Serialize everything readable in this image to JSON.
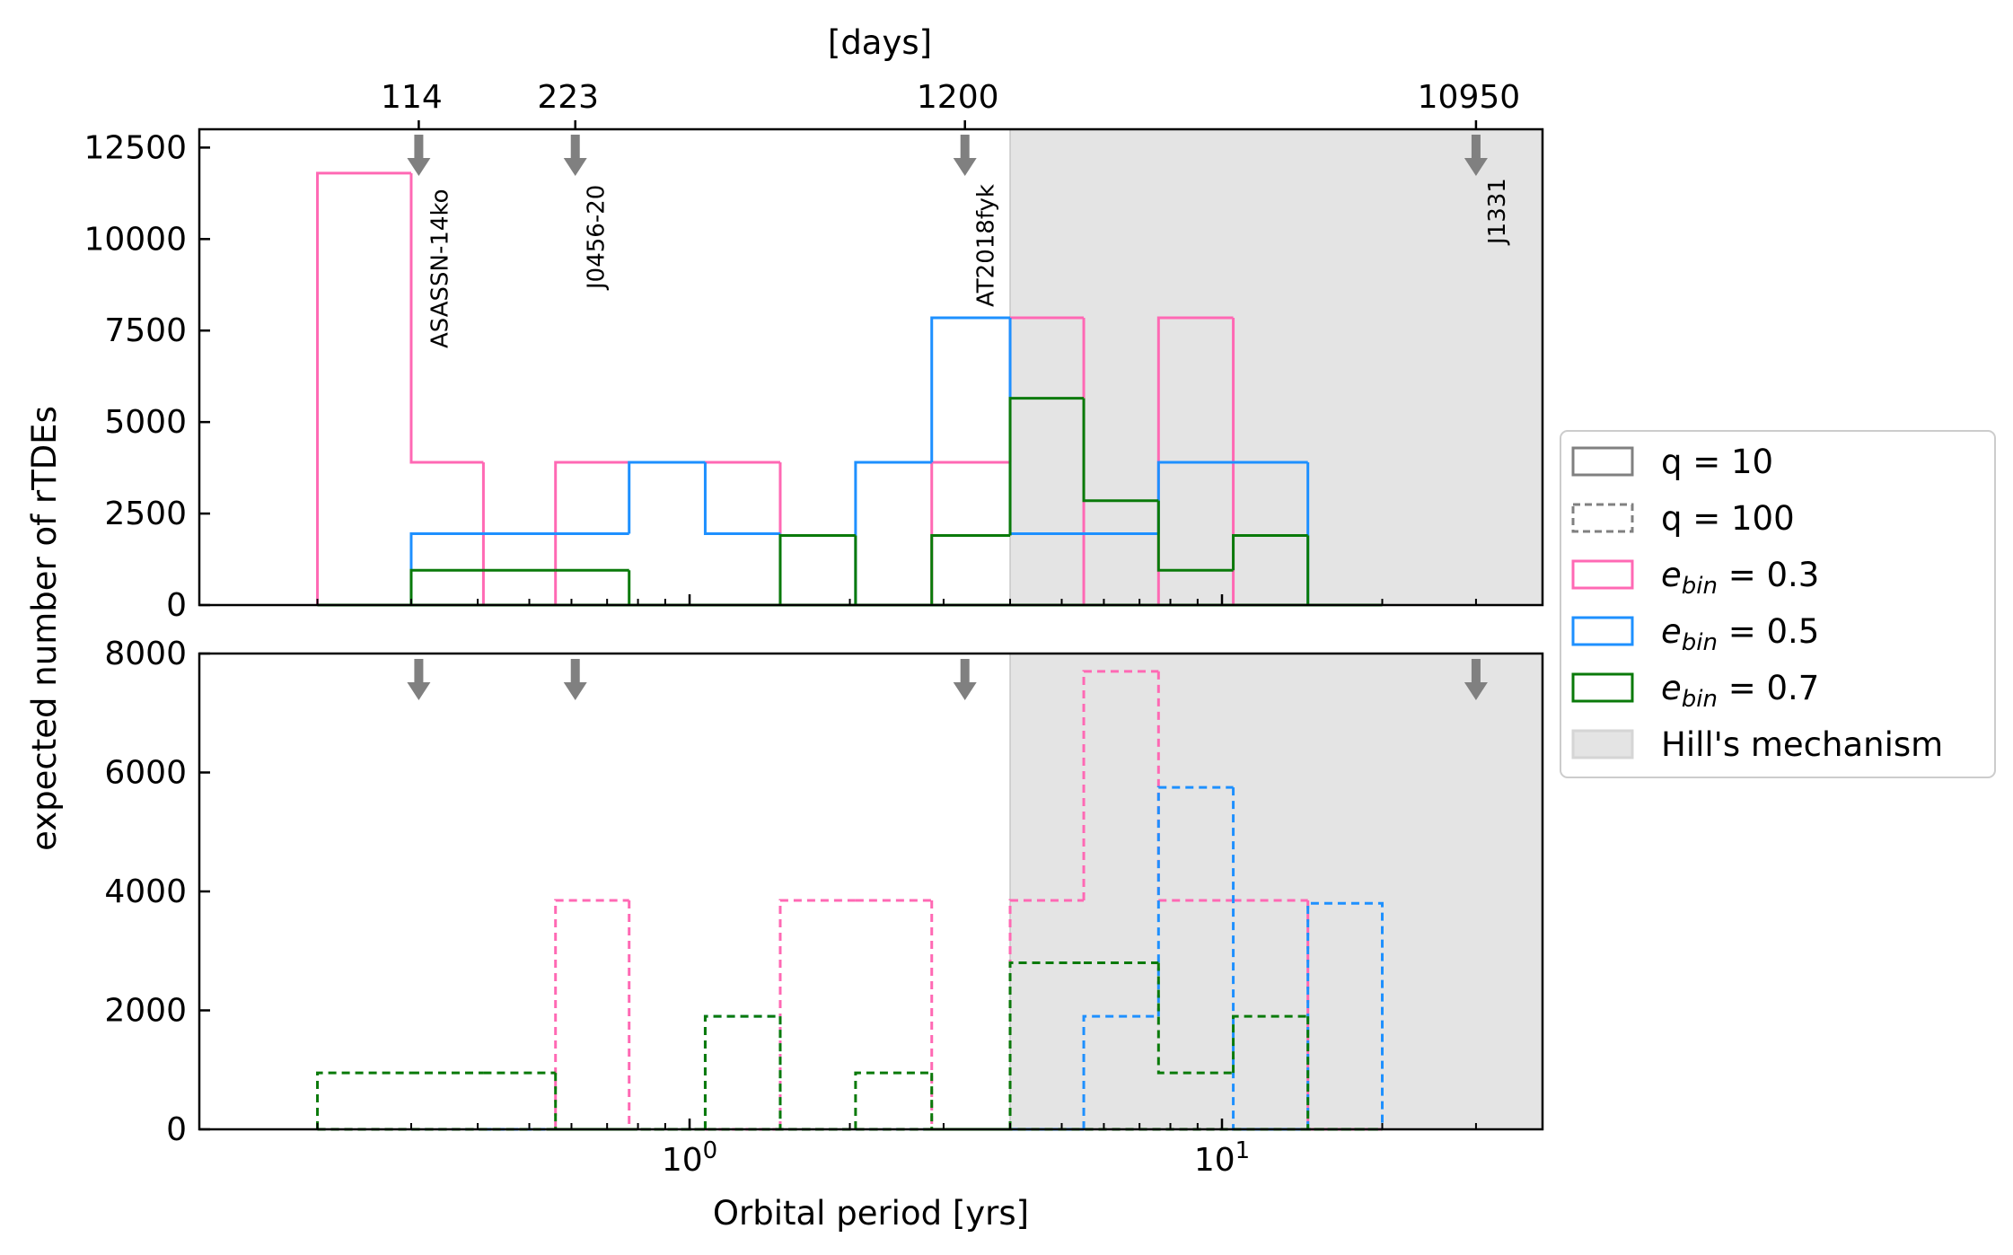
{
  "chart_data": {
    "type": "histogram",
    "xlabel": "Orbital period [yrs]",
    "ylabel": "expected number of rTDEs",
    "xscale": "log",
    "xlim": [
      0.12,
      40
    ],
    "x_tick_labels": [
      {
        "value": 1,
        "label": "10",
        "exp": "0"
      },
      {
        "value": 10,
        "label": "10",
        "exp": "1"
      }
    ],
    "top_axis": {
      "label": "[days]",
      "ticks": [
        {
          "label": "114",
          "years": 0.31
        },
        {
          "label": "223",
          "years": 0.61
        },
        {
          "label": "1200",
          "years": 3.29
        },
        {
          "label": "10950",
          "years": 30.0
        }
      ]
    },
    "annotations": [
      {
        "text": "ASASSN-14ko",
        "years": 0.31
      },
      {
        "text": "J0456-20",
        "years": 0.61
      },
      {
        "text": "AT2018fyk",
        "years": 3.29
      },
      {
        "text": "J1331",
        "years": 30.0
      }
    ],
    "shaded_region": {
      "label": "Hill's mechanism",
      "x_start": 4.0,
      "x_end": 40,
      "color": "#e4e4e4"
    },
    "colors": {
      "e03": "#ff69b4",
      "e05": "#1e90ff",
      "e07": "#0a7a0a",
      "arrow": "#808080"
    },
    "bin_edges": [
      0.2,
      0.3,
      0.41,
      0.56,
      0.77,
      1.07,
      1.48,
      2.05,
      2.85,
      4.0,
      5.5,
      7.6,
      10.5,
      14.5,
      20.0
    ],
    "panels": [
      {
        "name": "top",
        "q": "q = 10",
        "linestyle": "solid",
        "ylim": [
          0,
          13000
        ],
        "yticks": [
          0,
          2500,
          5000,
          7500,
          10000,
          12500
        ],
        "series": [
          {
            "name": "e_bin = 0.3",
            "color_key": "e03",
            "values": [
              11800,
              3900,
              0,
              3900,
              3900,
              3900,
              0,
              0,
              3900,
              7850,
              0,
              7850,
              0,
              0
            ]
          },
          {
            "name": "e_bin = 0.5",
            "color_key": "e05",
            "values": [
              0,
              1950,
              1950,
              1950,
              3900,
              1950,
              0,
              3900,
              7850,
              1950,
              1950,
              3900,
              3900,
              0
            ]
          },
          {
            "name": "e_bin = 0.7",
            "color_key": "e07",
            "values": [
              0,
              950,
              950,
              950,
              0,
              0,
              1900,
              0,
              1900,
              5650,
              2850,
              950,
              1900,
              0
            ]
          }
        ]
      },
      {
        "name": "bottom",
        "q": "q = 100",
        "linestyle": "dashed",
        "ylim": [
          0,
          8000
        ],
        "yticks": [
          0,
          2000,
          4000,
          6000,
          8000
        ],
        "series": [
          {
            "name": "e_bin = 0.3",
            "color_key": "e03",
            "values": [
              0,
              0,
              0,
              3850,
              0,
              0,
              3850,
              3850,
              0,
              3850,
              7700,
              3850,
              3850,
              0
            ]
          },
          {
            "name": "e_bin = 0.5",
            "color_key": "e05",
            "values": [
              0,
              0,
              0,
              0,
              0,
              1900,
              0,
              0,
              0,
              0,
              1900,
              5750,
              0,
              3800
            ]
          },
          {
            "name": "e_bin = 0.7",
            "color_key": "e07",
            "values": [
              950,
              950,
              950,
              0,
              0,
              1900,
              0,
              950,
              0,
              2800,
              2800,
              950,
              1900,
              0
            ]
          }
        ]
      }
    ],
    "legend": {
      "placement": "outside-right",
      "entries": [
        {
          "label": "q = 10",
          "style": "solid-gray"
        },
        {
          "label": "q = 100",
          "style": "dashed-gray"
        },
        {
          "label_base": "e",
          "label_sub": "bin",
          "label_rest": " = 0.3",
          "style": "e03"
        },
        {
          "label_base": "e",
          "label_sub": "bin",
          "label_rest": " = 0.5",
          "style": "e05"
        },
        {
          "label_base": "e",
          "label_sub": "bin",
          "label_rest": " = 0.7",
          "style": "e07"
        },
        {
          "label": "Hill's mechanism",
          "style": "shade"
        }
      ]
    }
  }
}
